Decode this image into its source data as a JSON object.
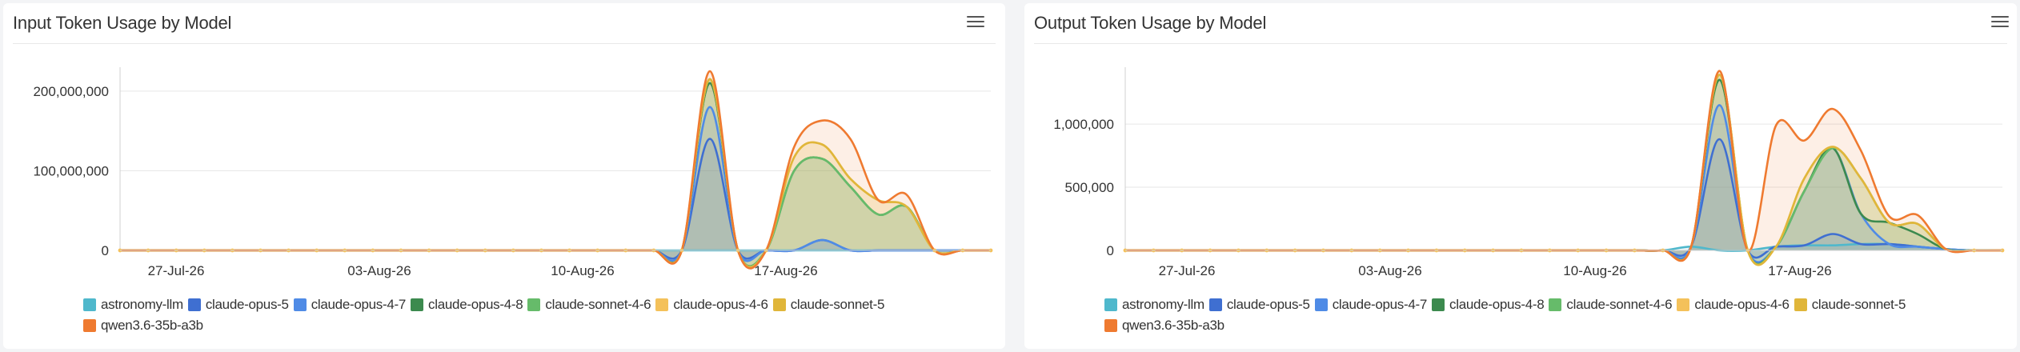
{
  "charts": [
    {
      "id": "input",
      "menu_icon": "hamburger-menu-icon",
      "chart_data": {
        "type": "area",
        "title": "Input Token Usage by Model",
        "xlabel": "",
        "ylabel": "",
        "x_ticks": [
          "27-Jul-26",
          "03-Aug-26",
          "10-Aug-26",
          "17-Aug-26"
        ],
        "x": [
          "2026-07-25",
          "2026-07-26",
          "2026-07-27",
          "2026-07-28",
          "2026-07-29",
          "2026-07-30",
          "2026-07-31",
          "2026-08-01",
          "2026-08-02",
          "2026-08-03",
          "2026-08-04",
          "2026-08-05",
          "2026-08-06",
          "2026-08-07",
          "2026-08-08",
          "2026-08-09",
          "2026-08-10",
          "2026-08-11",
          "2026-08-12",
          "2026-08-13",
          "2026-08-14",
          "2026-08-15",
          "2026-08-16",
          "2026-08-17",
          "2026-08-18",
          "2026-08-19",
          "2026-08-20",
          "2026-08-21",
          "2026-08-22",
          "2026-08-23",
          "2026-08-24",
          "2026-08-25"
        ],
        "ylim": [
          0,
          230000000
        ],
        "y_ticks": [
          0,
          100000000,
          200000000
        ],
        "y_tick_labels": [
          "0",
          "100,000,000",
          "200,000,000"
        ],
        "grid": true,
        "legend_position": "bottom-left",
        "series": [
          {
            "name": "astronomy-llm",
            "color": "#4fb8cc",
            "values": [
              0,
              0,
              0,
              0,
              0,
              0,
              0,
              0,
              0,
              0,
              0,
              0,
              0,
              0,
              0,
              0,
              0,
              0,
              0,
              0,
              0,
              0,
              0,
              0,
              0,
              0,
              0,
              0,
              0,
              0,
              0,
              0
            ]
          },
          {
            "name": "claude-opus-5",
            "color": "#3f6fd1",
            "values": [
              0,
              0,
              0,
              0,
              0,
              0,
              0,
              0,
              0,
              0,
              0,
              0,
              0,
              0,
              0,
              0,
              0,
              0,
              0,
              0,
              0,
              140000000,
              0,
              0,
              0,
              13000000,
              0,
              0,
              0,
              0,
              0,
              0
            ]
          },
          {
            "name": "claude-opus-4-7",
            "color": "#4f8be6",
            "values": [
              0,
              0,
              0,
              0,
              0,
              0,
              0,
              0,
              0,
              0,
              0,
              0,
              0,
              0,
              0,
              0,
              0,
              0,
              0,
              0,
              0,
              40000000,
              0,
              0,
              0,
              0,
              0,
              0,
              0,
              0,
              0,
              0
            ]
          },
          {
            "name": "claude-opus-4-8",
            "color": "#3c8a4e",
            "values": [
              0,
              0,
              0,
              0,
              0,
              0,
              0,
              0,
              0,
              0,
              0,
              0,
              0,
              0,
              0,
              0,
              0,
              0,
              0,
              0,
              0,
              30000000,
              0,
              0,
              100000000,
              102000000,
              80000000,
              45000000,
              55000000,
              0,
              0,
              0
            ]
          },
          {
            "name": "claude-sonnet-4-6",
            "color": "#66bb6a",
            "values": [
              0,
              0,
              0,
              0,
              0,
              0,
              0,
              0,
              0,
              0,
              0,
              0,
              0,
              0,
              0,
              0,
              0,
              0,
              0,
              0,
              0,
              5000000,
              0,
              0,
              0,
              0,
              0,
              0,
              0,
              0,
              0,
              0
            ]
          },
          {
            "name": "claude-opus-4-6",
            "color": "#f4c15a",
            "values": [
              0,
              0,
              0,
              0,
              0,
              0,
              0,
              0,
              0,
              0,
              0,
              0,
              0,
              0,
              0,
              0,
              0,
              0,
              0,
              0,
              0,
              0,
              0,
              0,
              17000000,
              18000000,
              10000000,
              18000000,
              0,
              0,
              0,
              0
            ]
          },
          {
            "name": "claude-sonnet-5",
            "color": "#e0b63a",
            "values": [
              0,
              0,
              0,
              0,
              0,
              0,
              0,
              0,
              0,
              0,
              0,
              0,
              0,
              0,
              0,
              0,
              0,
              0,
              0,
              0,
              0,
              0,
              0,
              0,
              0,
              0,
              0,
              0,
              0,
              0,
              0,
              0
            ]
          },
          {
            "name": "qwen3.6-35b-a3b",
            "color": "#ef7a30",
            "values": [
              0,
              0,
              0,
              0,
              0,
              0,
              0,
              0,
              0,
              0,
              0,
              0,
              0,
              0,
              0,
              0,
              0,
              0,
              0,
              0,
              0,
              10000000,
              0,
              0,
              13000000,
              30000000,
              50000000,
              0,
              15000000,
              0,
              0,
              0
            ]
          }
        ]
      }
    },
    {
      "id": "output",
      "menu_icon": "hamburger-menu-icon",
      "chart_data": {
        "type": "area",
        "title": "Output Token Usage by Model",
        "xlabel": "",
        "ylabel": "",
        "x_ticks": [
          "27-Jul-26",
          "03-Aug-26",
          "10-Aug-26",
          "17-Aug-26"
        ],
        "x": [
          "2026-07-25",
          "2026-07-26",
          "2026-07-27",
          "2026-07-28",
          "2026-07-29",
          "2026-07-30",
          "2026-07-31",
          "2026-08-01",
          "2026-08-02",
          "2026-08-03",
          "2026-08-04",
          "2026-08-05",
          "2026-08-06",
          "2026-08-07",
          "2026-08-08",
          "2026-08-09",
          "2026-08-10",
          "2026-08-11",
          "2026-08-12",
          "2026-08-13",
          "2026-08-14",
          "2026-08-15",
          "2026-08-16",
          "2026-08-17",
          "2026-08-18",
          "2026-08-19",
          "2026-08-20",
          "2026-08-21",
          "2026-08-22",
          "2026-08-23",
          "2026-08-24",
          "2026-08-25"
        ],
        "ylim": [
          0,
          1450000
        ],
        "y_ticks": [
          0,
          500000,
          1000000
        ],
        "y_tick_labels": [
          "0",
          "500,000",
          "1,000,000"
        ],
        "grid": true,
        "legend_position": "bottom-left",
        "series": [
          {
            "name": "astronomy-llm",
            "color": "#4fb8cc",
            "values": [
              0,
              0,
              0,
              0,
              0,
              0,
              0,
              0,
              0,
              0,
              0,
              0,
              0,
              0,
              0,
              0,
              0,
              0,
              0,
              0,
              30000,
              0,
              0,
              30000,
              40000,
              40000,
              50000,
              50000,
              30000,
              10000,
              0,
              0
            ]
          },
          {
            "name": "claude-opus-5",
            "color": "#3f6fd1",
            "values": [
              0,
              0,
              0,
              0,
              0,
              0,
              0,
              0,
              0,
              0,
              0,
              0,
              0,
              0,
              0,
              0,
              0,
              0,
              0,
              0,
              0,
              880000,
              0,
              0,
              0,
              90000,
              0,
              0,
              0,
              0,
              0,
              0
            ]
          },
          {
            "name": "claude-opus-4-7",
            "color": "#4f8be6",
            "values": [
              0,
              0,
              0,
              0,
              0,
              0,
              0,
              0,
              0,
              0,
              0,
              0,
              0,
              0,
              0,
              0,
              0,
              0,
              0,
              0,
              0,
              270000,
              0,
              0,
              430000,
              680000,
              240000,
              0,
              0,
              0,
              0,
              0
            ]
          },
          {
            "name": "claude-opus-4-8",
            "color": "#3c8a4e",
            "values": [
              0,
              0,
              0,
              0,
              0,
              0,
              0,
              0,
              0,
              0,
              0,
              0,
              0,
              0,
              0,
              0,
              0,
              0,
              0,
              0,
              0,
              200000,
              0,
              0,
              0,
              0,
              0,
              170000,
              100000,
              0,
              0,
              0
            ]
          },
          {
            "name": "claude-sonnet-4-6",
            "color": "#66bb6a",
            "values": [
              0,
              0,
              0,
              0,
              0,
              0,
              0,
              0,
              0,
              0,
              0,
              0,
              0,
              0,
              0,
              0,
              0,
              0,
              0,
              0,
              0,
              40000,
              0,
              0,
              0,
              0,
              280000,
              0,
              80000,
              0,
              0,
              0
            ]
          },
          {
            "name": "claude-opus-4-6",
            "color": "#f4c15a",
            "values": [
              0,
              0,
              0,
              0,
              0,
              0,
              0,
              0,
              0,
              0,
              0,
              0,
              0,
              0,
              0,
              0,
              0,
              0,
              0,
              0,
              0,
              0,
              0,
              0,
              100000,
              10000,
              0,
              0,
              0,
              0,
              0,
              0
            ]
          },
          {
            "name": "claude-sonnet-5",
            "color": "#e0b63a",
            "values": [
              0,
              0,
              0,
              0,
              0,
              0,
              0,
              0,
              0,
              0,
              0,
              0,
              0,
              0,
              0,
              0,
              0,
              0,
              0,
              0,
              0,
              0,
              0,
              0,
              0,
              0,
              0,
              0,
              0,
              0,
              0,
              0
            ]
          },
          {
            "name": "qwen3.6-35b-a3b",
            "color": "#ef7a30",
            "values": [
              0,
              0,
              0,
              0,
              0,
              0,
              0,
              0,
              0,
              0,
              0,
              0,
              0,
              0,
              0,
              0,
              0,
              0,
              0,
              0,
              0,
              30000,
              0,
              960000,
              300000,
              300000,
              220000,
              50000,
              70000,
              0,
              0,
              0
            ]
          }
        ]
      }
    }
  ]
}
